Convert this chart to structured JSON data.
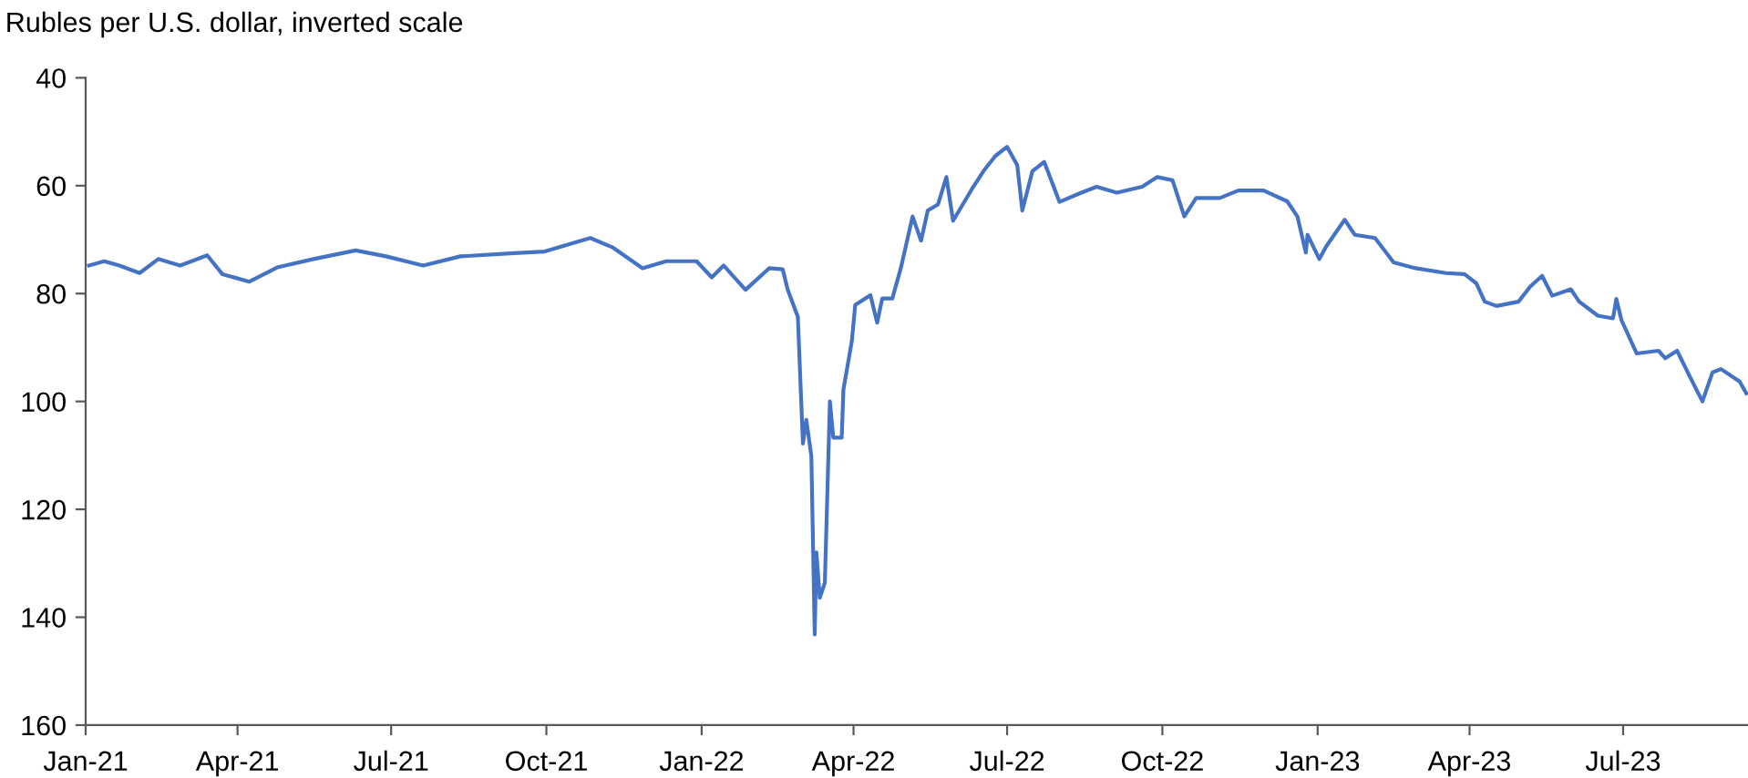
{
  "chart_data": {
    "type": "line",
    "ylabel": "Rubles per U.S. dollar, inverted scale",
    "ylim": [
      160,
      40
    ],
    "yticks": [
      40,
      60,
      80,
      100,
      120,
      140,
      160
    ],
    "xlim": [
      "2021-01-01",
      "2023-09-13"
    ],
    "xticks": [
      {
        "value": "2021-01-01",
        "label": "Jan-21"
      },
      {
        "value": "2021-04-01",
        "label": "Apr-21"
      },
      {
        "value": "2021-07-01",
        "label": "Jul-21"
      },
      {
        "value": "2021-10-01",
        "label": "Oct-21"
      },
      {
        "value": "2022-01-01",
        "label": "Jan-22"
      },
      {
        "value": "2022-04-01",
        "label": "Apr-22"
      },
      {
        "value": "2022-07-01",
        "label": "Jul-22"
      },
      {
        "value": "2022-10-01",
        "label": "Oct-22"
      },
      {
        "value": "2023-01-01",
        "label": "Jan-23"
      },
      {
        "value": "2023-04-01",
        "label": "Apr-23"
      },
      {
        "value": "2023-07-01",
        "label": "Jul-23"
      }
    ],
    "grid": false,
    "legend": false,
    "series": [
      {
        "color": "#4472c4",
        "x": [
          "2021-01-03",
          "2021-01-12",
          "2021-01-21",
          "2021-02-02",
          "2021-02-13",
          "2021-02-26",
          "2021-03-14",
          "2021-03-23",
          "2021-04-08",
          "2021-04-25",
          "2021-05-16",
          "2021-06-10",
          "2021-06-28",
          "2021-07-20",
          "2021-08-11",
          "2021-09-12",
          "2021-09-30",
          "2021-10-27",
          "2021-11-09",
          "2021-11-27",
          "2021-12-11",
          "2021-12-29",
          "2022-01-07",
          "2022-01-14",
          "2022-01-27",
          "2022-02-10",
          "2022-02-18",
          "2022-02-21",
          "2022-02-27",
          "2022-03-02",
          "2022-03-04",
          "2022-03-07",
          "2022-03-09",
          "2022-03-10",
          "2022-03-12",
          "2022-03-15",
          "2022-03-18",
          "2022-03-20",
          "2022-03-25",
          "2022-03-26",
          "2022-03-31",
          "2022-04-02",
          "2022-04-11",
          "2022-04-15",
          "2022-04-18",
          "2022-04-24",
          "2022-04-29",
          "2022-05-06",
          "2022-05-11",
          "2022-05-15",
          "2022-05-21",
          "2022-05-26",
          "2022-05-30",
          "2022-06-10",
          "2022-06-17",
          "2022-06-24",
          "2022-07-01",
          "2022-07-07",
          "2022-07-10",
          "2022-07-16",
          "2022-07-23",
          "2022-08-01",
          "2022-08-14",
          "2022-08-23",
          "2022-09-04",
          "2022-09-19",
          "2022-09-28",
          "2022-10-07",
          "2022-10-14",
          "2022-10-21",
          "2022-11-04",
          "2022-11-15",
          "2022-11-30",
          "2022-12-14",
          "2022-12-20",
          "2022-12-25",
          "2022-12-26",
          "2023-01-02",
          "2023-01-06",
          "2023-01-17",
          "2023-01-23",
          "2023-02-04",
          "2023-02-15",
          "2023-02-28",
          "2023-03-18",
          "2023-03-29",
          "2023-04-05",
          "2023-04-10",
          "2023-04-17",
          "2023-04-30",
          "2023-05-07",
          "2023-05-14",
          "2023-05-20",
          "2023-05-31",
          "2023-06-05",
          "2023-06-16",
          "2023-06-25",
          "2023-06-27",
          "2023-06-30",
          "2023-07-09",
          "2023-07-22",
          "2023-07-26",
          "2023-08-02",
          "2023-08-10",
          "2023-08-17",
          "2023-08-23",
          "2023-08-28",
          "2023-09-08",
          "2023-09-12"
        ],
        "values": [
          74.8,
          74.0,
          74.8,
          76.2,
          73.6,
          74.8,
          72.9,
          76.4,
          77.8,
          75.1,
          73.6,
          72.0,
          73.1,
          74.8,
          73.1,
          72.5,
          72.2,
          69.7,
          71.4,
          75.3,
          74.0,
          74.0,
          77.0,
          74.8,
          79.3,
          75.3,
          75.5,
          79.3,
          84.3,
          107.8,
          103.4,
          110.1,
          143.2,
          128.0,
          136.4,
          133.6,
          100.0,
          106.7,
          106.7,
          97.8,
          88.8,
          82.1,
          80.3,
          85.4,
          80.9,
          80.9,
          75.3,
          65.7,
          70.2,
          64.6,
          63.5,
          58.4,
          66.5,
          60.7,
          57.3,
          54.5,
          52.8,
          56.2,
          64.6,
          57.3,
          55.6,
          63.0,
          61.3,
          60.2,
          61.3,
          60.2,
          58.4,
          59.0,
          65.7,
          62.3,
          62.3,
          60.9,
          60.9,
          62.9,
          65.7,
          72.4,
          69.1,
          73.6,
          71.3,
          66.3,
          69.1,
          69.7,
          74.2,
          75.3,
          76.2,
          76.4,
          78.1,
          81.5,
          82.3,
          81.5,
          78.7,
          76.7,
          80.4,
          79.2,
          81.5,
          84.1,
          84.6,
          81.0,
          84.9,
          91.1,
          90.6,
          92.0,
          90.6,
          95.7,
          100.0,
          94.6,
          94.0,
          96.3,
          98.5
        ]
      }
    ]
  }
}
